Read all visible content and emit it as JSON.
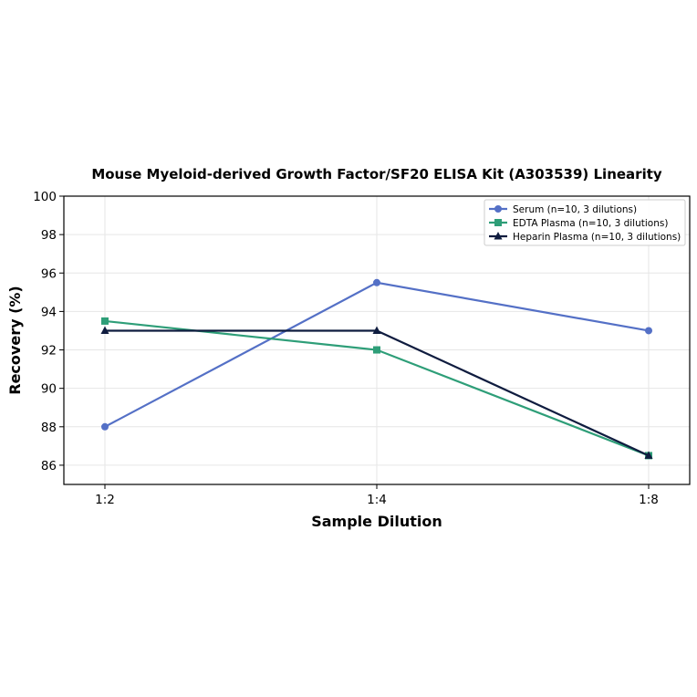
{
  "chart_data": {
    "type": "line",
    "title": "Mouse Myeloid-derived Growth Factor/SF20 ELISA Kit (A303539) Linearity",
    "xlabel": "Sample Dilution",
    "ylabel": "Recovery (%)",
    "categories": [
      "1:2",
      "1:4",
      "1:8"
    ],
    "ylim": [
      85,
      100
    ],
    "yticks": [
      86,
      88,
      90,
      92,
      94,
      96,
      98,
      100
    ],
    "grid": true,
    "legend_position": "top-right",
    "series": [
      {
        "name": "Serum (n=10, 3 dilutions)",
        "values": [
          88.0,
          95.5,
          93.0
        ],
        "color": "#5470c6",
        "marker": "circle"
      },
      {
        "name": "EDTA Plasma (n=10, 3 dilutions)",
        "values": [
          93.5,
          92.0,
          86.5
        ],
        "color": "#2e9e78",
        "marker": "square"
      },
      {
        "name": "Heparin Plasma (n=10, 3 dilutions)",
        "values": [
          93.0,
          93.0,
          86.5
        ],
        "color": "#0f1c3f",
        "marker": "triangle"
      }
    ]
  }
}
